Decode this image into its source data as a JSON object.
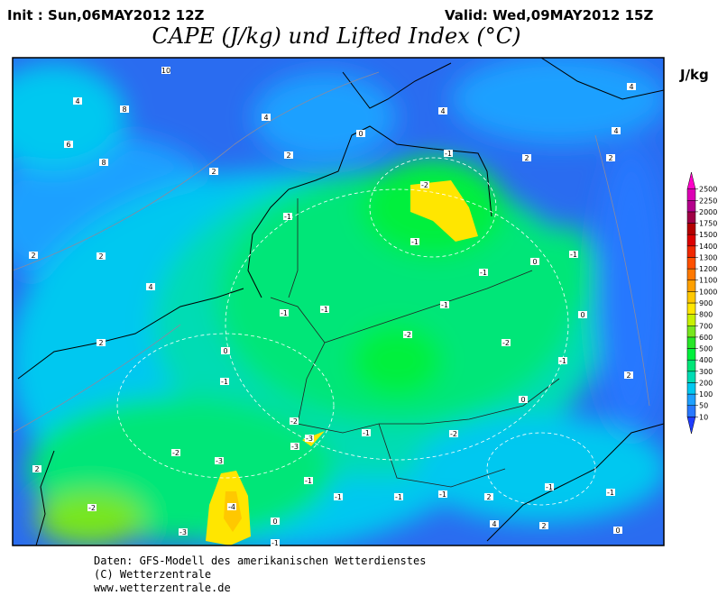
{
  "header": {
    "init": "Init : Sun,06MAY2012 12Z",
    "valid": "Valid: Wed,09MAY2012 15Z",
    "title": "CAPE (J/kg) und Lifted Index (°C)",
    "unit": "J/kg"
  },
  "colorbar": {
    "levels": [
      10,
      50,
      100,
      200,
      300,
      400,
      500,
      600,
      700,
      800,
      900,
      1000,
      1100,
      1200,
      1300,
      1400,
      1500,
      1750,
      2000,
      2250,
      2500
    ],
    "colors": [
      "#1e3cff",
      "#2878ff",
      "#1ea0ff",
      "#00c8f0",
      "#00dcb4",
      "#00e678",
      "#00f03c",
      "#28e628",
      "#78e61e",
      "#c8f000",
      "#ffe600",
      "#ffc800",
      "#ffa000",
      "#ff7800",
      "#ff5000",
      "#f02800",
      "#dc0000",
      "#b40000",
      "#a00046",
      "#b4008c",
      "#dc00b4",
      "#ff00c8"
    ]
  },
  "map_labels": [
    10,
    4,
    8,
    4,
    4,
    6,
    8,
    2,
    2,
    0,
    -1,
    -2,
    2,
    2,
    4,
    4,
    2,
    2,
    4,
    -1,
    -1,
    -1,
    0,
    -1,
    -1,
    -1,
    -1,
    0,
    2,
    0,
    -2,
    -2,
    -1,
    2,
    -1,
    0,
    -2,
    -3,
    -3,
    -2,
    -3,
    -1,
    -2,
    2,
    -1,
    -1,
    -1,
    -1,
    2,
    -1,
    -1,
    -2,
    -4,
    0,
    4,
    2,
    0,
    -3,
    -1
  ],
  "footer": [
    "Daten: GFS-Modell des amerikanischen Wetterdienstes",
    "(C) Wetterzentrale",
    "www.wetterzentrale.de"
  ]
}
